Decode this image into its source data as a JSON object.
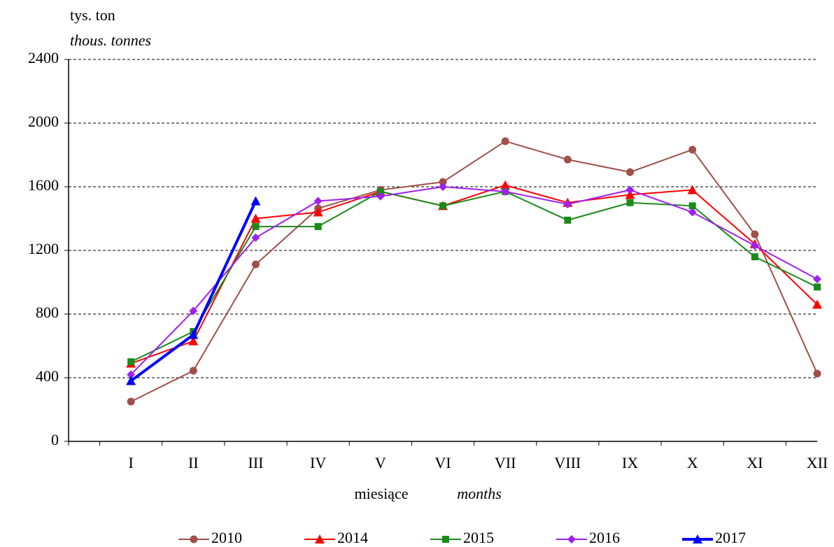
{
  "chart_data": {
    "type": "line",
    "y_label": "tys. ton",
    "y_label_en": "thous. tonnes",
    "x_label": "miesiące",
    "x_label_en": "months",
    "categories": [
      "I",
      "II",
      "III",
      "IV",
      "V",
      "VI",
      "VII",
      "VIII",
      "IX",
      "X",
      "XI",
      "XII"
    ],
    "ylim": [
      0,
      2400
    ],
    "yticks": [
      0,
      400,
      800,
      1200,
      1600,
      2000,
      2400
    ],
    "grid": true,
    "series": [
      {
        "name": "2010",
        "color": "#a0504b",
        "marker": "circle",
        "values": [
          250,
          444,
          1112,
          1464,
          1580,
          1630,
          1886,
          1771,
          1692,
          1833,
          1301,
          426
        ]
      },
      {
        "name": "2014",
        "color": "#ff0000",
        "marker": "triangle",
        "values": [
          490,
          630,
          1400,
          1440,
          1570,
          1480,
          1610,
          1500,
          1550,
          1580,
          1240,
          860
        ]
      },
      {
        "name": "2015",
        "color": "#1a8a1a",
        "marker": "square",
        "values": [
          500,
          690,
          1350,
          1350,
          1570,
          1480,
          1570,
          1390,
          1500,
          1480,
          1160,
          970
        ]
      },
      {
        "name": "2016",
        "color": "#a020f0",
        "marker": "diamond",
        "values": [
          420,
          820,
          1280,
          1510,
          1540,
          1600,
          1570,
          1490,
          1580,
          1440,
          1230,
          1020
        ]
      },
      {
        "name": "2017",
        "color": "#0000ff",
        "marker": "triangle",
        "line_width": 4,
        "values": [
          380,
          670,
          1510,
          null,
          null,
          null,
          null,
          null,
          null,
          null,
          null,
          null
        ]
      }
    ]
  }
}
